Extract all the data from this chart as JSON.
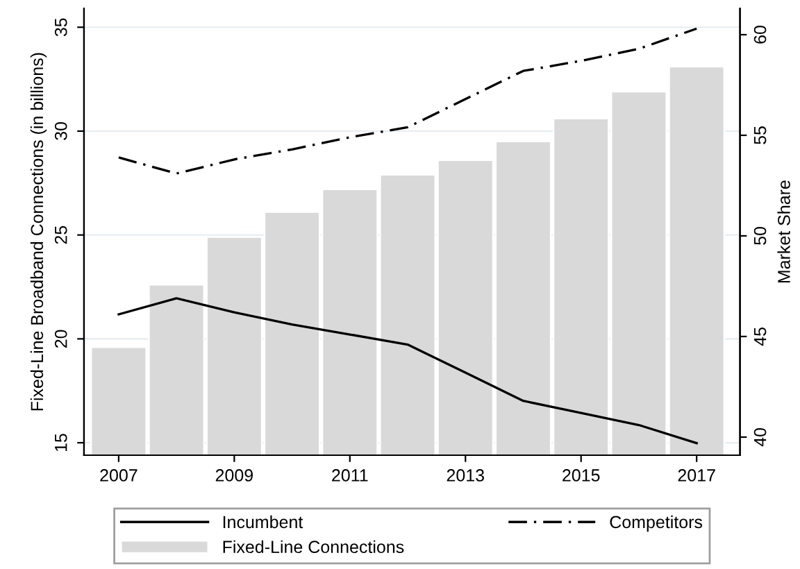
{
  "chart_data": {
    "type": "bar",
    "ylabel": "Fixed-Line Broadband Connections (in billions)",
    "y2label": "Market Share",
    "x": [
      2007,
      2008,
      2009,
      2010,
      2011,
      2012,
      2013,
      2014,
      2015,
      2016,
      2017
    ],
    "series": [
      {
        "name": "Incumbent",
        "type": "line",
        "axis": "y2",
        "color": "#000000",
        "line_style": "solid",
        "values": [
          46.1,
          46.9,
          46.2,
          45.6,
          45.1,
          44.6,
          43.2,
          41.8,
          41.2,
          40.6,
          39.7
        ]
      },
      {
        "name": "Competitors",
        "type": "line",
        "axis": "y2",
        "color": "#000000",
        "line_style": "dashdot",
        "values": [
          53.9,
          53.1,
          53.8,
          54.3,
          54.9,
          55.4,
          56.8,
          58.2,
          58.7,
          59.3,
          60.3
        ]
      },
      {
        "name": "Fixed-Line Connections",
        "color": "#d9d9d9",
        "values": [
          19.6,
          22.6,
          24.9,
          26.1,
          27.2,
          27.9,
          28.6,
          29.5,
          30.6,
          31.9,
          33.1
        ]
      }
    ],
    "xlim": [
      2006.4,
      2017.75
    ],
    "xticks": [
      2007,
      2009,
      2011,
      2013,
      2015,
      2017
    ],
    "ylim": [
      14.4,
      35.9
    ],
    "yticks": [
      15,
      20,
      25,
      30,
      35
    ],
    "y2lim": [
      39.1,
      61.3
    ],
    "y2ticks": [
      40,
      45,
      50,
      55,
      60
    ],
    "grid": "y",
    "legend": "bottom"
  }
}
